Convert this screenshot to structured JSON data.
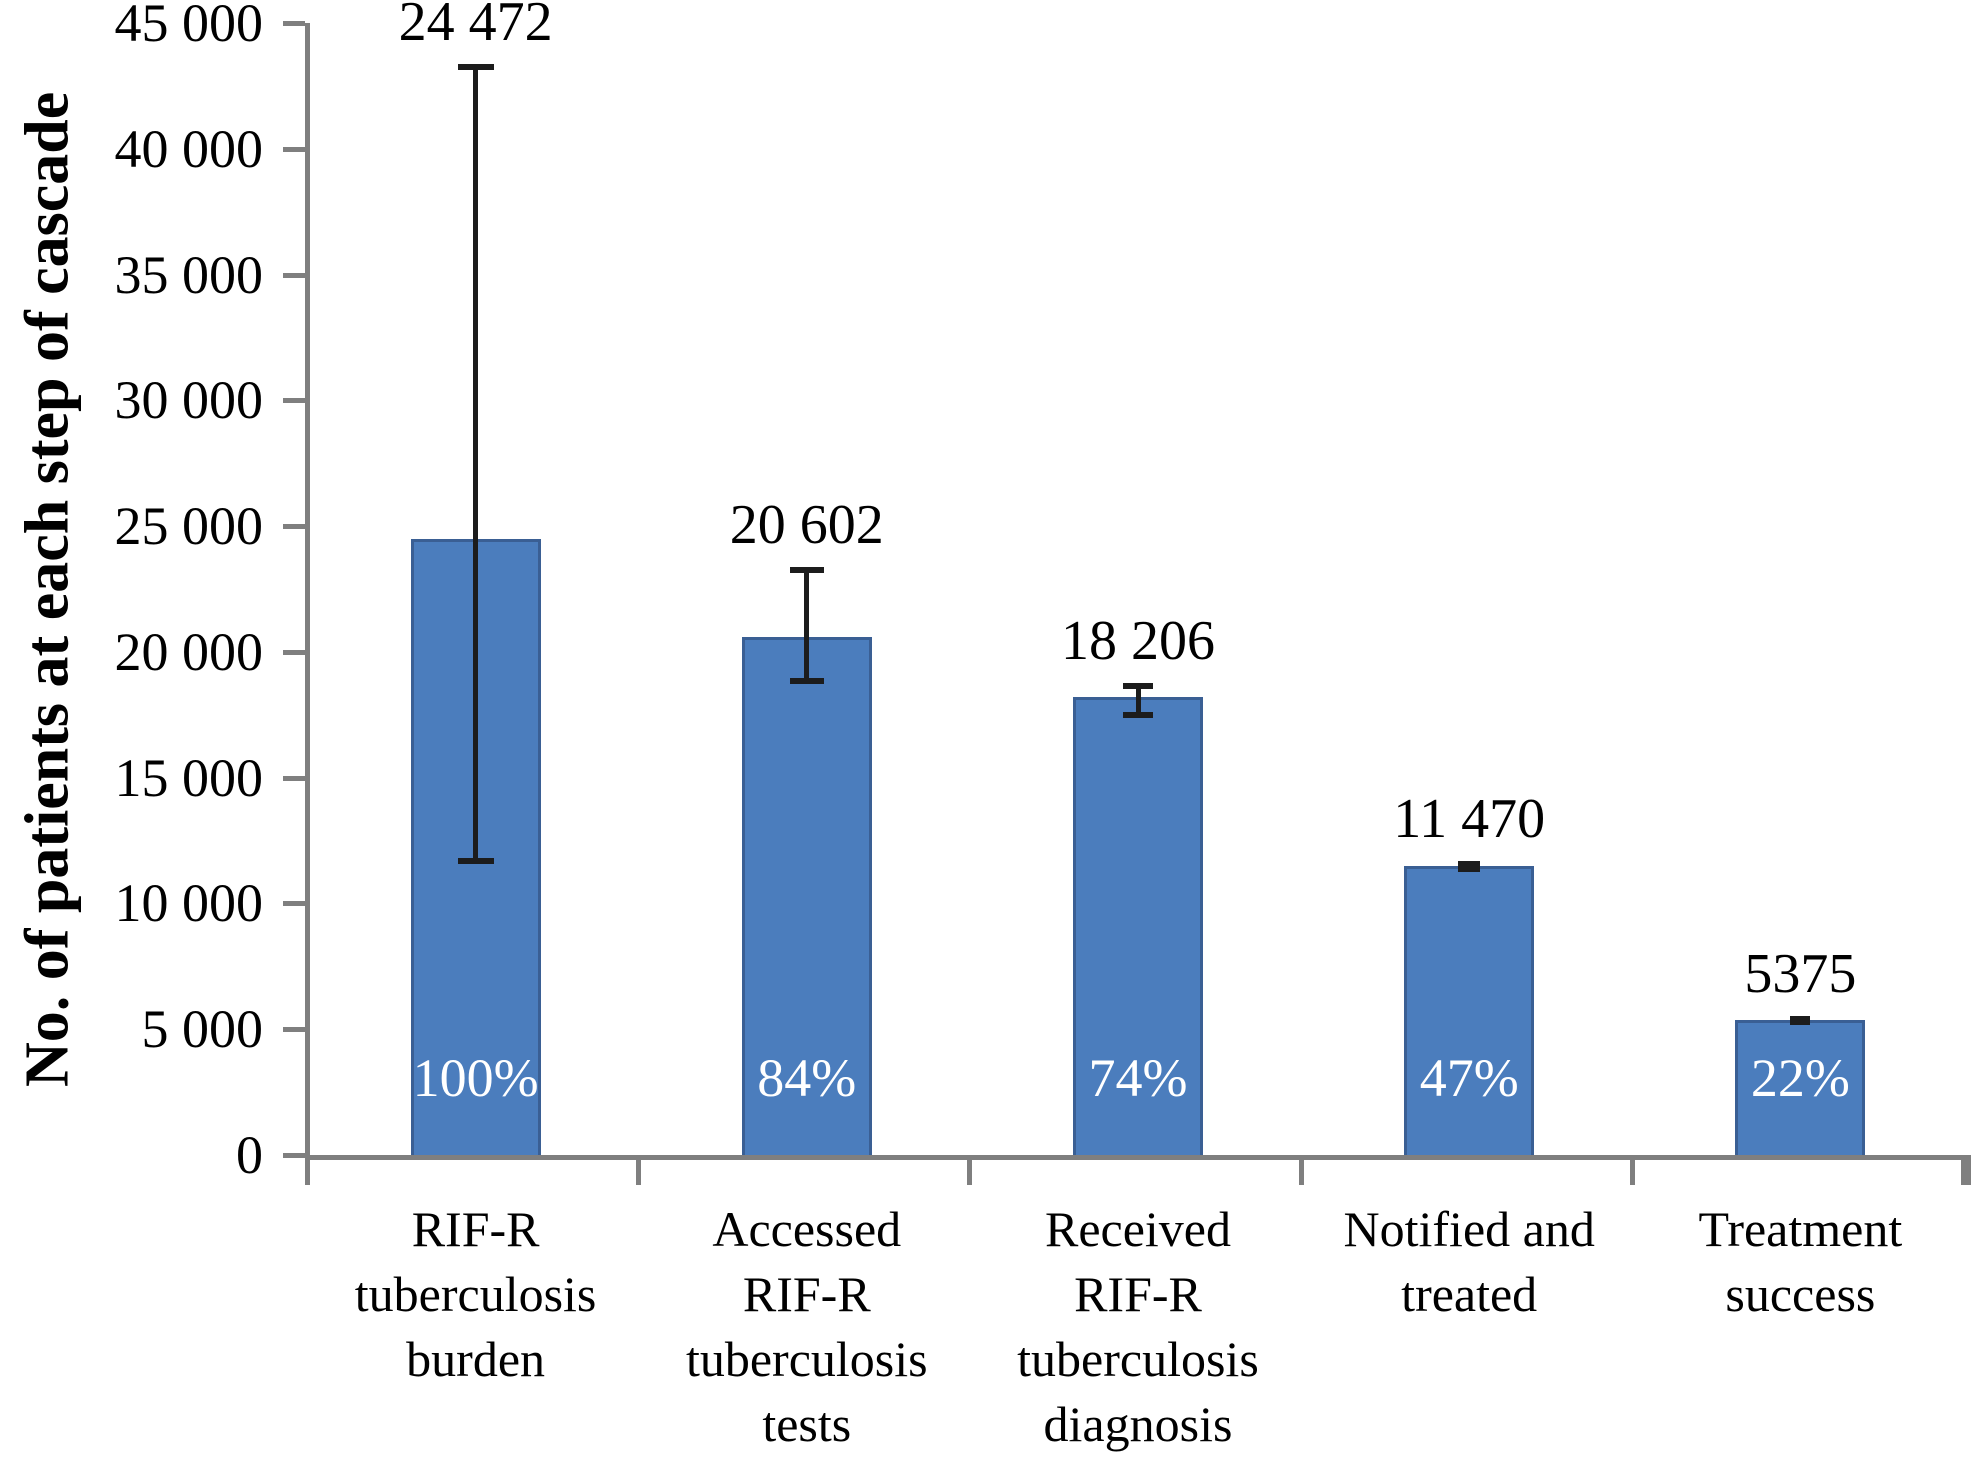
{
  "chart_data": {
    "type": "bar",
    "title": "",
    "xlabel": "",
    "ylabel": "No. of patients at each step of cascade",
    "ylim": [
      0,
      45000
    ],
    "ytick_step": 5000,
    "ytick_labels": [
      "0",
      "5 000",
      "10 000",
      "15 000",
      "20 000",
      "25 000",
      "30 000",
      "35 000",
      "40 000",
      "45 000"
    ],
    "grid": false,
    "legend": "none",
    "categories": [
      [
        "RIF-R",
        "tuberculosis",
        "burden"
      ],
      [
        "Accessed",
        "RIF-R",
        "tuberculosis",
        "tests"
      ],
      [
        "Received",
        "RIF-R",
        "tuberculosis",
        "diagnosis"
      ],
      [
        "Notified and",
        "treated"
      ],
      [
        "Treatment",
        "success"
      ]
    ],
    "values": [
      24472,
      20602,
      18206,
      11470,
      5375
    ],
    "value_labels": [
      "24 472",
      "20 602",
      "18 206",
      "11 470",
      "5375"
    ],
    "percent_labels": [
      "100%",
      "84%",
      "74%",
      "47%",
      "22%"
    ],
    "error_bars": [
      {
        "low": 11700,
        "high": 43300
      },
      {
        "low": 18850,
        "high": 23300
      },
      {
        "low": 17500,
        "high": 18700
      },
      {
        "low": 11350,
        "high": 11600
      },
      {
        "low": 5300,
        "high": 5450
      }
    ],
    "colors": {
      "bar_fill": "#4b7dbd",
      "bar_border": "#3a5f94",
      "axis": "#7f7f7f",
      "error_bar": "#1c1c1c",
      "tick_label": "#000000",
      "percent_text": "#ffffff",
      "background": "#ffffff"
    }
  }
}
